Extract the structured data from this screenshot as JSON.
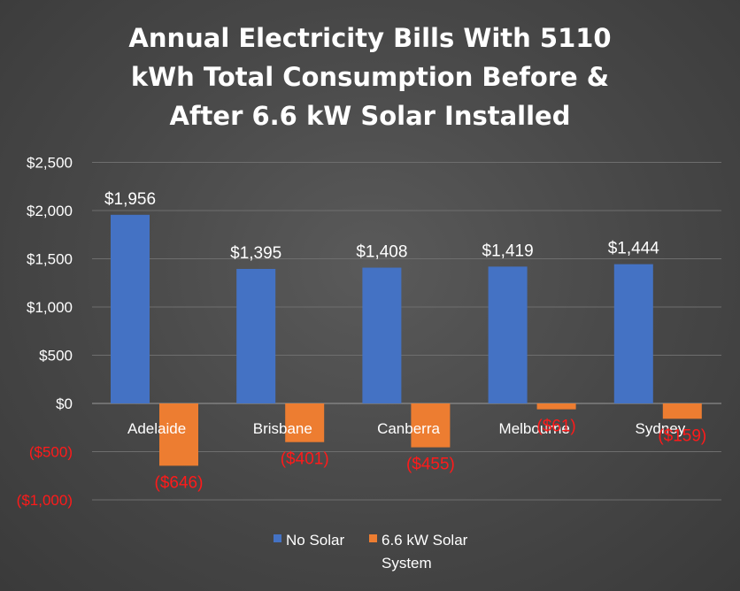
{
  "chart_data": {
    "type": "bar",
    "title_lines": [
      "Annual Electricity Bills With 5110",
      "kWh Total Consumption Before &",
      "After 6.6 kW Solar Installed"
    ],
    "categories": [
      "Adelaide",
      "Brisbane",
      "Canberra",
      "Melbourne",
      "Sydney"
    ],
    "series": [
      {
        "name": "No Solar",
        "color": "#4472c4",
        "values": [
          1956,
          1395,
          1408,
          1419,
          1444
        ],
        "labels": [
          "$1,956",
          "$1,395",
          "$1,408",
          "$1,419",
          "$1,444"
        ]
      },
      {
        "name": "6.6 kW Solar System",
        "color": "#ed7d31",
        "values": [
          -646,
          -401,
          -455,
          -61,
          -159
        ],
        "labels": [
          "($646)",
          "($401)",
          "($455)",
          "($61)",
          "($159)"
        ]
      }
    ],
    "ylim": [
      -1000,
      2500
    ],
    "yticks": [
      2500,
      2000,
      1500,
      1000,
      500,
      0,
      -500,
      -1000
    ],
    "ytick_labels": [
      "$2,500",
      "$2,000",
      "$1,500",
      "$1,000",
      "$500",
      "$0",
      "($500)",
      "($1,000)"
    ],
    "legend": {
      "position": "bottom",
      "entries": [
        "No Solar",
        "6.6 kW Solar",
        "System"
      ]
    },
    "grid": true
  }
}
